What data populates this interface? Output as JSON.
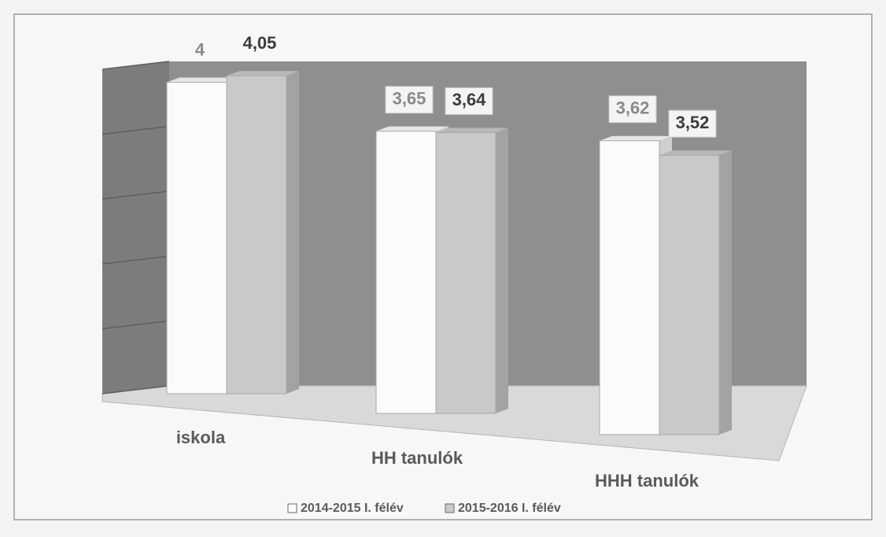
{
  "chart_data": {
    "type": "bar3d",
    "categories": [
      "iskola",
      "HH tanulók",
      "HHH tanulók"
    ],
    "series": [
      {
        "name": "2014-2015 I. félév",
        "color": "#fbfbf9",
        "values": [
          4,
          3.65,
          3.62
        ],
        "value_labels": [
          "4",
          "3,65",
          "3,62"
        ]
      },
      {
        "name": "2015-2016 I. félév",
        "color": "#c9c9c7",
        "values": [
          4.05,
          3.64,
          3.52
        ],
        "value_labels": [
          "4,05",
          "3,64",
          "3,52"
        ]
      }
    ],
    "ylim": [
      1.6,
      4.1
    ],
    "yticks": [
      1.6,
      2.1,
      2.6,
      3.1,
      3.6,
      4.1
    ],
    "grid": true
  }
}
